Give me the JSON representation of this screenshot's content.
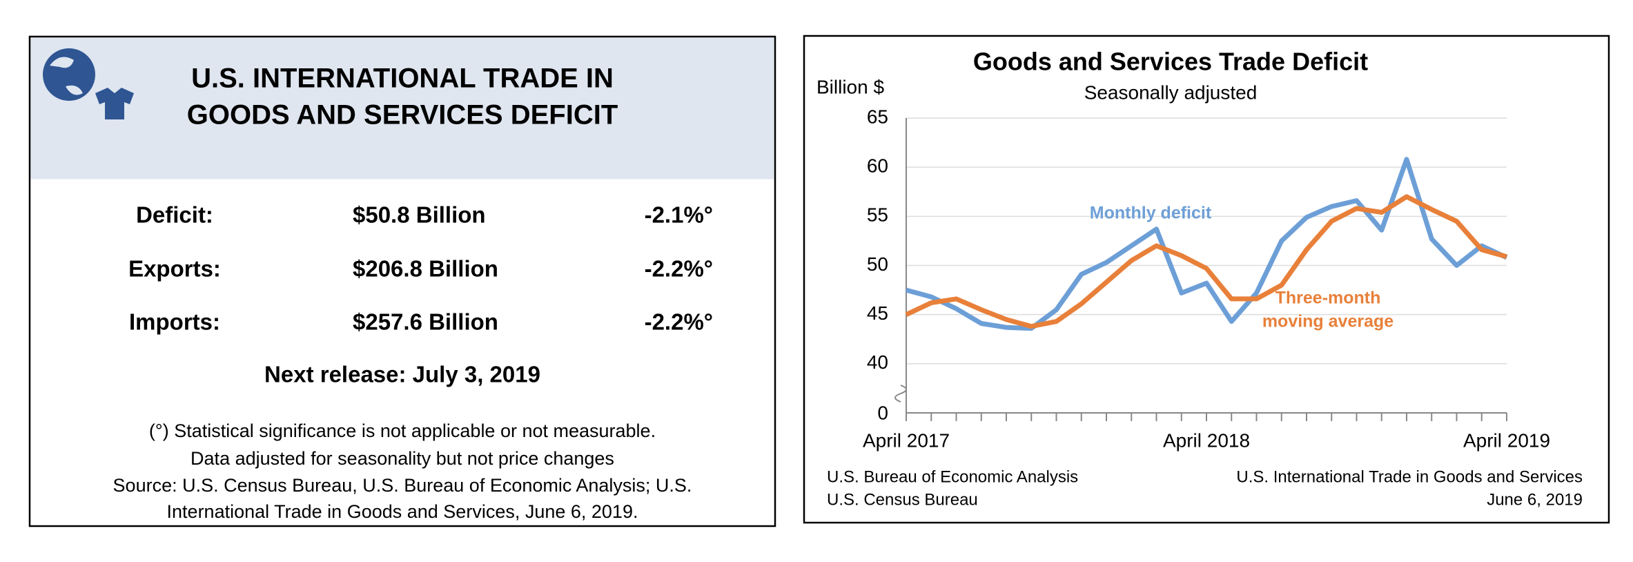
{
  "left_panel": {
    "title_lines": [
      "U.S. INTERNATIONAL TRADE IN",
      "GOODS AND SERVICES DEFICIT"
    ],
    "rows": [
      {
        "label": "Deficit:",
        "value": "$50.8 Billion",
        "change": "-2.1%°"
      },
      {
        "label": "Exports:",
        "value": "$206.8 Billion",
        "change": "-2.2%°"
      },
      {
        "label": "Imports:",
        "value": "$257.6 Billion",
        "change": "-2.2%°"
      }
    ],
    "next_release": "Next release: July 3, 2019",
    "notes": [
      "(°) Statistical significance is not applicable or not measurable.",
      "Data adjusted for seasonality but not price changes",
      "Source: U.S. Census Bureau, U.S. Bureau of Economic Analysis; U.S.",
      "International Trade in Goods and Services, June  6, 2019."
    ]
  },
  "chart_data": {
    "type": "line",
    "title": "Goods and Services Trade Deficit",
    "subtitle": "Seasonally adjusted",
    "y_label": "Billion $",
    "categories": [
      "April 2017",
      null,
      null,
      null,
      null,
      null,
      null,
      null,
      null,
      null,
      null,
      null,
      "April 2018",
      null,
      null,
      null,
      null,
      null,
      null,
      null,
      null,
      null,
      null,
      null,
      "April 2019"
    ],
    "series": [
      {
        "name": "Monthly deficit",
        "color": "#6d9fd7",
        "values": [
          47.5,
          46.8,
          45.6,
          44.1,
          43.7,
          43.6,
          45.5,
          49.1,
          50.3,
          52.0,
          53.7,
          47.2,
          48.2,
          44.3,
          47.2,
          52.5,
          54.9,
          56.0,
          56.6,
          53.6,
          60.8,
          52.7,
          50.0,
          52.0,
          50.8
        ]
      },
      {
        "name": "Three-month moving average",
        "color": "#e8803a",
        "values": [
          45.0,
          46.2,
          46.6,
          45.5,
          44.5,
          43.8,
          44.3,
          46.1,
          48.3,
          50.5,
          52.0,
          51.0,
          49.7,
          46.6,
          46.6,
          48.0,
          51.6,
          54.5,
          55.8,
          55.4,
          57.0,
          55.7,
          54.5,
          51.6,
          50.9
        ]
      }
    ],
    "annotations": [
      "Monthly deficit",
      "Three-month",
      "moving average"
    ],
    "ylim": [
      35,
      65
    ],
    "yticks": [
      0,
      40,
      45,
      50,
      55,
      60,
      65
    ],
    "axis_break": true,
    "grid": true,
    "footer_left": [
      "U.S. Bureau of Economic Analysis",
      "U.S. Census Bureau"
    ],
    "footer_right": [
      "U.S. International Trade in Goods and Services",
      "June 6, 2019"
    ]
  }
}
